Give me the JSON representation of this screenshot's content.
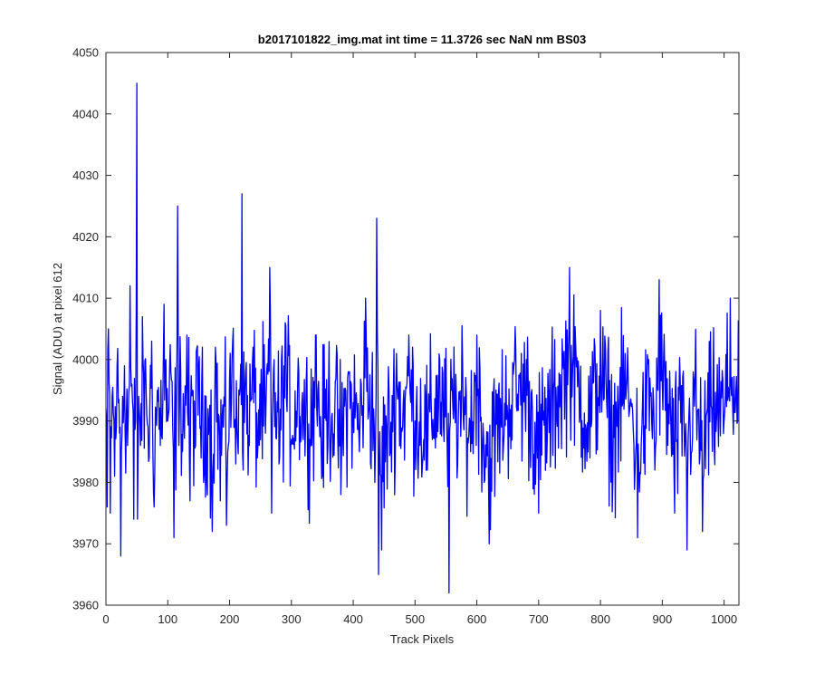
{
  "chart_data": {
    "type": "line",
    "title": "b2017101822_img.mat int time = 11.3726 sec  NaN nm BS03",
    "xlabel": "Track Pixels",
    "ylabel": "Signal (ADU) at pixel 612",
    "xlim": [
      0,
      1024
    ],
    "ylim": [
      3960,
      4050
    ],
    "xticks": [
      0,
      100,
      200,
      300,
      400,
      500,
      600,
      700,
      800,
      900,
      1000
    ],
    "yticks": [
      3960,
      3970,
      3980,
      3990,
      4000,
      4010,
      4020,
      4030,
      4040,
      4050
    ],
    "grid": false,
    "series": [
      {
        "color": "#0000ff",
        "noise": {
          "count": 1024,
          "mean": 3992,
          "spread": 6,
          "min": 3962,
          "max": 4045
        },
        "x": [
          0,
          2,
          4,
          7,
          10,
          14,
          18,
          22,
          24,
          27,
          30,
          35,
          39,
          42,
          45,
          48,
          50,
          51,
          53,
          56,
          60,
          65,
          70,
          74,
          78,
          83,
          88,
          94,
          100,
          105,
          110,
          114,
          116,
          118,
          121,
          126,
          131,
          136,
          140,
          145,
          150,
          158,
          165,
          172,
          177,
          185,
          190,
          195,
          200,
          205,
          210,
          215,
          220,
          222,
          226,
          232,
          238,
          245,
          252,
          258,
          265,
          268,
          272,
          280,
          290,
          300,
          312,
          320,
          330,
          340,
          350,
          360,
          370,
          380,
          392,
          400,
          410,
          420,
          430,
          435,
          438,
          441,
          446,
          460,
          470,
          480,
          490,
          500,
          520,
          540,
          552,
          555,
          559,
          570,
          590,
          600,
          612,
          620,
          640,
          660,
          680,
          700,
          720,
          750,
          780,
          800,
          820,
          840,
          848,
          860,
          880,
          888,
          895,
          920,
          937,
          940,
          950,
          960,
          965,
          980,
          1000,
          1010,
          1022
        ],
        "y": [
          3992,
          3976,
          4005,
          3975,
          3994,
          3981,
          3999,
          3988,
          3968,
          3994,
          3999,
          3986,
          4012,
          3996,
          3974,
          3990,
          4045,
          3974,
          3994,
          3986,
          4000,
          3995,
          3984,
          4003,
          3976,
          3995,
          3986,
          4009,
          3990,
          3998,
          3971,
          3992,
          4025,
          3986,
          3998,
          3990,
          4004,
          3977,
          3995,
          3986,
          3999,
          3980,
          3992,
          3972,
          4002,
          3977,
          3989,
          3973,
          3997,
          4003,
          3983,
          3995,
          4027,
          3982,
          3998,
          3986,
          4002,
          3984,
          3993,
          3988,
          4015,
          3975,
          4000,
          3983,
          4006,
          3987,
          3998,
          3991,
          3987,
          4004,
          3981,
          3995,
          3990,
          3978,
          3998,
          3993,
          3985,
          4010,
          3994,
          3980,
          4023,
          3965,
          3969,
          3985,
          4001,
          3989,
          4004,
          3990,
          3982,
          4000,
          3986,
          3962,
          3995,
          3990,
          3985,
          4004,
          3980,
          3970,
          3989,
          3999,
          4000,
          3975,
          3990,
          4015,
          3985,
          4008,
          3980,
          4001,
          3993,
          3971,
          3997,
          3982,
          4013,
          3975,
          3987,
          3969,
          3998,
          3983,
          3972,
          3992,
          3990,
          4010,
          3990
        ]
      }
    ]
  }
}
